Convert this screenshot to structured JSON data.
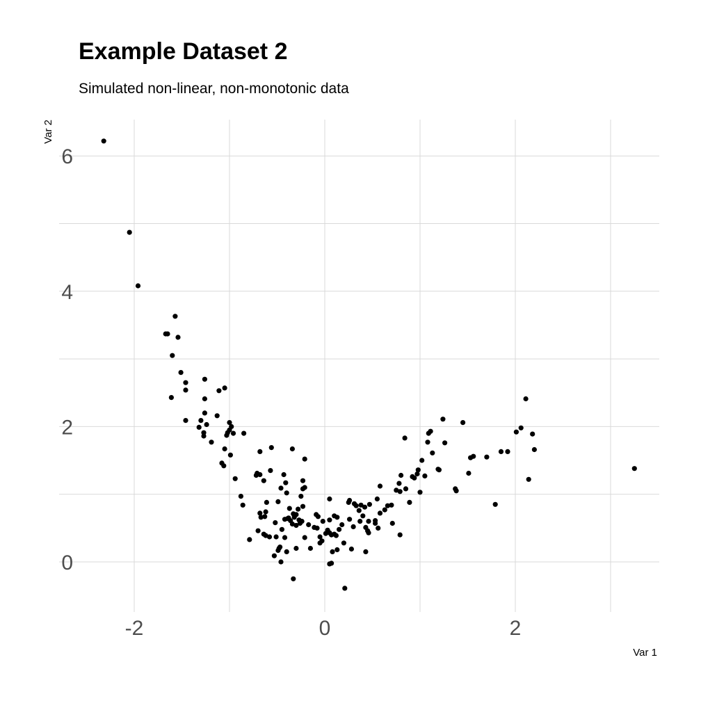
{
  "chart_data": {
    "type": "scatter",
    "title": "Example Dataset 2",
    "subtitle": "Simulated non-linear, non-monotonic data",
    "xlabel": "Var 1",
    "ylabel": "Var 2",
    "xlim": [
      -2.5,
      3.5
    ],
    "ylim": [
      -0.7,
      6.5
    ],
    "x_ticks": [
      -2,
      0,
      2
    ],
    "x_tick_labels": [
      "-2",
      "0",
      "2"
    ],
    "y_ticks": [
      0,
      2,
      4,
      6
    ],
    "y_tick_labels": [
      "0",
      "2",
      "4",
      "6"
    ],
    "grid": true,
    "point_color": "#000000",
    "grid_color": "#d9d9d9",
    "tick_label_color": "#4d4d4d",
    "points": [
      [
        -2.32,
        6.22
      ],
      [
        -2.05,
        4.87
      ],
      [
        -1.96,
        4.08
      ],
      [
        -1.67,
        3.37
      ],
      [
        -1.65,
        3.37
      ],
      [
        -1.57,
        3.63
      ],
      [
        -1.54,
        3.32
      ],
      [
        -1.6,
        3.05
      ],
      [
        -1.51,
        2.8
      ],
      [
        -1.46,
        2.65
      ],
      [
        -1.46,
        2.54
      ],
      [
        -1.61,
        2.43
      ],
      [
        -1.46,
        2.09
      ],
      [
        -1.26,
        2.7
      ],
      [
        -1.05,
        2.57
      ],
      [
        -1.11,
        2.53
      ],
      [
        -1.26,
        2.41
      ],
      [
        -1.26,
        2.2
      ],
      [
        -1.3,
        2.09
      ],
      [
        -1.24,
        2.03
      ],
      [
        -1.32,
        1.99
      ],
      [
        -1.27,
        1.91
      ],
      [
        -1.27,
        1.86
      ],
      [
        -1.13,
        2.16
      ],
      [
        -1.19,
        1.77
      ],
      [
        -1.0,
        2.06
      ],
      [
        -0.98,
        2.0
      ],
      [
        -1.0,
        1.95
      ],
      [
        -1.02,
        1.91
      ],
      [
        -0.96,
        1.9
      ],
      [
        -1.03,
        1.87
      ],
      [
        -1.05,
        1.67
      ],
      [
        -0.99,
        1.58
      ],
      [
        -1.08,
        1.46
      ],
      [
        -1.06,
        1.42
      ],
      [
        -0.85,
        1.9
      ],
      [
        -0.94,
        1.23
      ],
      [
        -0.88,
        0.97
      ],
      [
        -0.86,
        0.84
      ],
      [
        -0.79,
        0.33
      ],
      [
        -0.56,
        1.69
      ],
      [
        -0.34,
        1.67
      ],
      [
        -0.68,
        1.63
      ],
      [
        -0.21,
        1.52
      ],
      [
        -0.57,
        1.35
      ],
      [
        -0.71,
        1.31
      ],
      [
        -0.68,
        1.29
      ],
      [
        -0.72,
        1.28
      ],
      [
        -0.43,
        1.29
      ],
      [
        -0.64,
        1.2
      ],
      [
        -0.41,
        1.17
      ],
      [
        -0.23,
        1.2
      ],
      [
        -0.21,
        1.1
      ],
      [
        -0.23,
        1.08
      ],
      [
        -0.46,
        1.09
      ],
      [
        -0.4,
        1.02
      ],
      [
        -0.25,
        0.97
      ],
      [
        -0.49,
        0.89
      ],
      [
        -0.61,
        0.88
      ],
      [
        -0.23,
        0.82
      ],
      [
        -0.28,
        0.78
      ],
      [
        -0.37,
        0.79
      ],
      [
        -0.68,
        0.72
      ],
      [
        -0.62,
        0.74
      ],
      [
        -0.67,
        0.66
      ],
      [
        -0.63,
        0.67
      ],
      [
        -0.33,
        0.71
      ],
      [
        -0.3,
        0.7
      ],
      [
        -0.38,
        0.65
      ],
      [
        -0.39,
        0.64
      ],
      [
        -0.36,
        0.61
      ],
      [
        -0.42,
        0.63
      ],
      [
        -0.32,
        0.66
      ],
      [
        -0.27,
        0.62
      ],
      [
        -0.24,
        0.6
      ],
      [
        -0.26,
        0.57
      ],
      [
        -0.52,
        0.58
      ],
      [
        -0.34,
        0.56
      ],
      [
        -0.3,
        0.54
      ],
      [
        -0.17,
        0.55
      ],
      [
        -0.11,
        0.51
      ],
      [
        -0.45,
        0.48
      ],
      [
        -0.7,
        0.46
      ],
      [
        -0.64,
        0.41
      ],
      [
        -0.58,
        0.37
      ],
      [
        -0.62,
        0.39
      ],
      [
        -0.51,
        0.37
      ],
      [
        -0.42,
        0.36
      ],
      [
        -0.21,
        0.36
      ],
      [
        -0.47,
        0.22
      ],
      [
        -0.48,
        0.2
      ],
      [
        -0.49,
        0.17
      ],
      [
        -0.4,
        0.15
      ],
      [
        -0.3,
        0.2
      ],
      [
        -0.15,
        0.2
      ],
      [
        -0.53,
        0.09
      ],
      [
        -0.46,
        0.0
      ],
      [
        -0.33,
        -0.25
      ],
      [
        -0.09,
        0.7
      ],
      [
        -0.07,
        0.67
      ],
      [
        -0.02,
        0.6
      ],
      [
        -0.08,
        0.5
      ],
      [
        -0.05,
        0.37
      ],
      [
        -0.03,
        0.31
      ],
      [
        -0.05,
        0.28
      ],
      [
        0.01,
        0.42
      ],
      [
        0.03,
        0.47
      ],
      [
        0.05,
        0.43
      ],
      [
        0.07,
        0.4
      ],
      [
        0.1,
        0.41
      ],
      [
        0.12,
        0.39
      ],
      [
        0.05,
        0.62
      ],
      [
        0.1,
        0.68
      ],
      [
        0.13,
        0.66
      ],
      [
        0.15,
        0.48
      ],
      [
        0.18,
        0.55
      ],
      [
        0.05,
        0.93
      ],
      [
        0.2,
        0.28
      ],
      [
        0.13,
        0.18
      ],
      [
        0.08,
        0.15
      ],
      [
        0.07,
        -0.02
      ],
      [
        0.05,
        -0.03
      ],
      [
        0.21,
        -0.39
      ],
      [
        0.25,
        0.88
      ],
      [
        0.26,
        0.91
      ],
      [
        0.31,
        0.86
      ],
      [
        0.33,
        0.83
      ],
      [
        0.36,
        0.76
      ],
      [
        0.38,
        0.84
      ],
      [
        0.42,
        0.81
      ],
      [
        0.47,
        0.85
      ],
      [
        0.26,
        0.63
      ],
      [
        0.3,
        0.52
      ],
      [
        0.37,
        0.6
      ],
      [
        0.4,
        0.68
      ],
      [
        0.46,
        0.6
      ],
      [
        0.43,
        0.51
      ],
      [
        0.45,
        0.46
      ],
      [
        0.46,
        0.43
      ],
      [
        0.43,
        0.15
      ],
      [
        0.28,
        0.19
      ],
      [
        0.53,
        0.57
      ],
      [
        0.56,
        0.5
      ],
      [
        0.53,
        0.61
      ],
      [
        0.58,
        0.72
      ],
      [
        0.55,
        0.93
      ],
      [
        0.58,
        1.12
      ],
      [
        0.63,
        0.77
      ],
      [
        0.66,
        0.83
      ],
      [
        0.7,
        0.84
      ],
      [
        0.71,
        0.57
      ],
      [
        0.75,
        1.06
      ],
      [
        0.79,
        1.04
      ],
      [
        0.78,
        1.16
      ],
      [
        0.8,
        1.28
      ],
      [
        0.85,
        1.08
      ],
      [
        0.79,
        0.4
      ],
      [
        0.84,
        1.83
      ],
      [
        0.89,
        0.88
      ],
      [
        0.92,
        1.26
      ],
      [
        0.94,
        1.24
      ],
      [
        0.97,
        1.3
      ],
      [
        0.98,
        1.36
      ],
      [
        1.0,
        1.03
      ],
      [
        1.02,
        1.5
      ],
      [
        1.05,
        1.27
      ],
      [
        1.08,
        1.77
      ],
      [
        1.09,
        1.9
      ],
      [
        1.11,
        1.93
      ],
      [
        1.13,
        1.61
      ],
      [
        1.19,
        1.37
      ],
      [
        1.2,
        1.36
      ],
      [
        1.24,
        2.11
      ],
      [
        1.26,
        1.76
      ],
      [
        1.37,
        1.08
      ],
      [
        1.38,
        1.05
      ],
      [
        1.45,
        2.06
      ],
      [
        1.51,
        1.31
      ],
      [
        1.53,
        1.54
      ],
      [
        1.56,
        1.56
      ],
      [
        1.7,
        1.55
      ],
      [
        1.79,
        0.85
      ],
      [
        1.85,
        1.63
      ],
      [
        1.92,
        1.63
      ],
      [
        2.01,
        1.92
      ],
      [
        2.06,
        1.98
      ],
      [
        2.11,
        2.41
      ],
      [
        2.14,
        1.22
      ],
      [
        2.18,
        1.89
      ],
      [
        2.2,
        1.66
      ],
      [
        3.25,
        1.38
      ]
    ]
  }
}
